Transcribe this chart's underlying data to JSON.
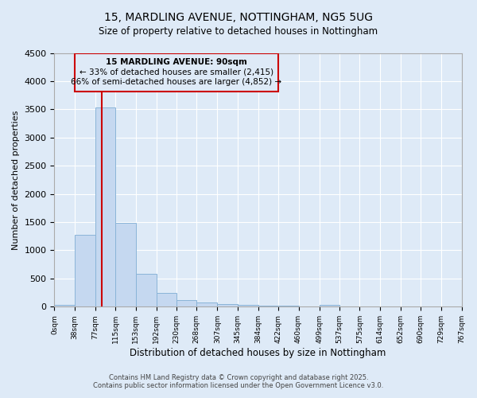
{
  "title1": "15, MARDLING AVENUE, NOTTINGHAM, NG5 5UG",
  "title2": "Size of property relative to detached houses in Nottingham",
  "xlabel": "Distribution of detached houses by size in Nottingham",
  "ylabel": "Number of detached properties",
  "bar_color": "#c5d8f0",
  "bar_edge_color": "#8ab4d8",
  "background_color": "#deeaf7",
  "plot_bg_color": "#deeaf7",
  "grid_color": "#ffffff",
  "annotation_box_color": "#cc0000",
  "annotation_line_color": "#cc0000",
  "annotation_line1": "15 MARDLING AVENUE: 90sqm",
  "annotation_line2": "← 33% of detached houses are smaller (2,415)",
  "annotation_line3": "66% of semi-detached houses are larger (4,852) →",
  "red_line_x": 90,
  "footer1": "Contains HM Land Registry data © Crown copyright and database right 2025.",
  "footer2": "Contains public sector information licensed under the Open Government Licence v3.0.",
  "bin_edges": [
    0,
    38,
    77,
    115,
    153,
    192,
    230,
    268,
    307,
    345,
    384,
    422,
    460,
    499,
    537,
    575,
    614,
    652,
    690,
    729,
    767
  ],
  "bar_heights": [
    30,
    1280,
    3540,
    1490,
    580,
    240,
    120,
    80,
    45,
    30,
    20,
    25,
    5,
    35,
    0,
    0,
    0,
    0,
    0,
    0
  ],
  "ylim": [
    0,
    4500
  ],
  "xlim": [
    0,
    767
  ],
  "yticks": [
    0,
    500,
    1000,
    1500,
    2000,
    2500,
    3000,
    3500,
    4000,
    4500
  ],
  "tick_labels": [
    "0sqm",
    "38sqm",
    "77sqm",
    "115sqm",
    "153sqm",
    "192sqm",
    "230sqm",
    "268sqm",
    "307sqm",
    "345sqm",
    "384sqm",
    "422sqm",
    "460sqm",
    "499sqm",
    "537sqm",
    "575sqm",
    "614sqm",
    "652sqm",
    "690sqm",
    "729sqm",
    "767sqm"
  ]
}
